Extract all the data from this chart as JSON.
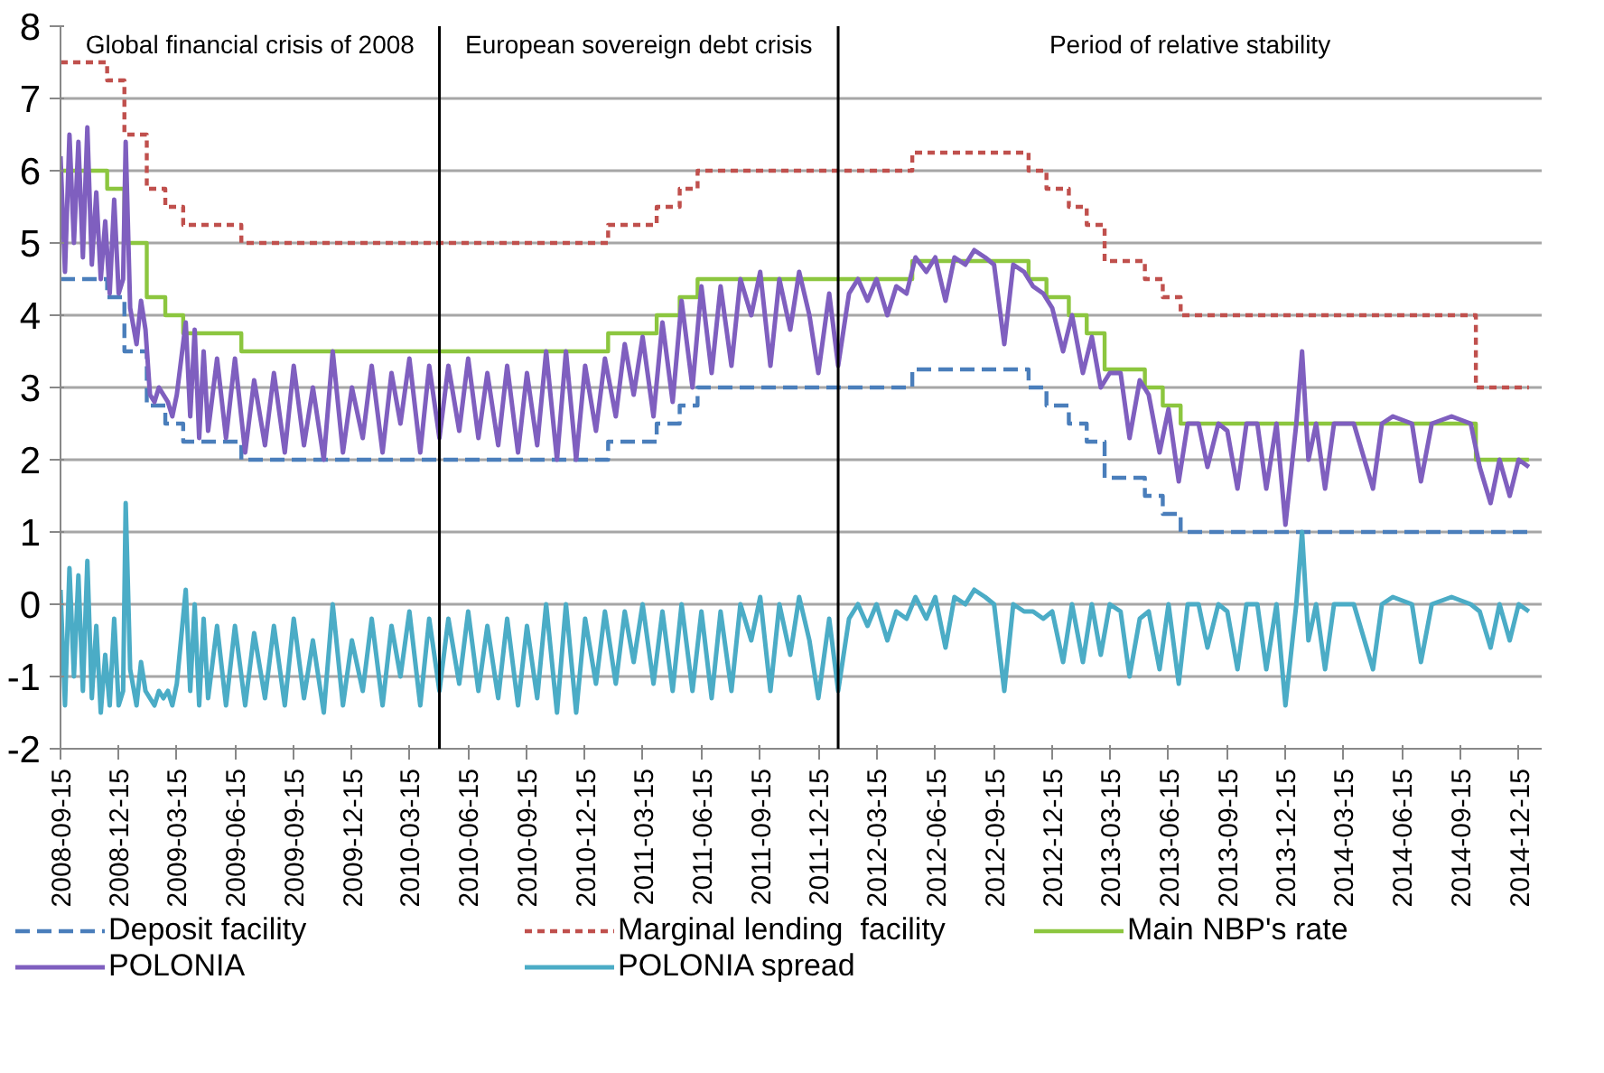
{
  "chart_data": {
    "type": "line",
    "xlim": [
      "2008-09-15",
      "2015-01-20"
    ],
    "xticks": [
      "2008-09-15",
      "2008-12-15",
      "2009-03-15",
      "2009-06-15",
      "2009-09-15",
      "2009-12-15",
      "2010-03-15",
      "2010-06-15",
      "2010-09-15",
      "2010-12-15",
      "2011-03-15",
      "2011-06-15",
      "2011-09-15",
      "2011-12-15",
      "2012-03-15",
      "2012-06-15",
      "2012-09-15",
      "2012-12-15",
      "2013-03-15",
      "2013-06-15",
      "2013-09-15",
      "2013-12-15",
      "2014-03-15",
      "2014-06-15",
      "2014-09-15",
      "2014-12-15"
    ],
    "ylim": [
      -2,
      8
    ],
    "yticks": [
      -2,
      -1,
      0,
      1,
      2,
      3,
      4,
      5,
      6,
      7,
      8
    ],
    "grid": "y",
    "legend": "bottom",
    "annotations": [
      "Global financial crisis of 2008",
      "European sovereign debt crisis",
      "Period of relative stability"
    ],
    "ref_lines": [
      {
        "axis": "x",
        "value": "2010-05-01",
        "label": null,
        "color": "#000000"
      },
      {
        "axis": "x",
        "value": "2012-01-15",
        "label": null,
        "color": "#000000"
      }
    ],
    "x": [
      "2008-09-15",
      "2008-09-22",
      "2008-09-29",
      "2008-10-06",
      "2008-10-13",
      "2008-10-20",
      "2008-10-27",
      "2008-11-03",
      "2008-11-10",
      "2008-11-17",
      "2008-11-24",
      "2008-12-01",
      "2008-12-08",
      "2008-12-15",
      "2008-12-22",
      "2008-12-26",
      "2009-01-02",
      "2009-01-12",
      "2009-01-19",
      "2009-01-26",
      "2009-02-02",
      "2009-02-09",
      "2009-02-16",
      "2009-02-23",
      "2009-03-02",
      "2009-03-09",
      "2009-03-16",
      "2009-03-30",
      "2009-04-06",
      "2009-04-13",
      "2009-04-20",
      "2009-04-27",
      "2009-05-04",
      "2009-05-18",
      "2009-06-01",
      "2009-06-15",
      "2009-07-01",
      "2009-07-15",
      "2009-08-01",
      "2009-08-15",
      "2009-09-01",
      "2009-09-15",
      "2009-10-01",
      "2009-10-15",
      "2009-11-01",
      "2009-11-15",
      "2009-12-01",
      "2009-12-15",
      "2010-01-01",
      "2010-01-15",
      "2010-02-01",
      "2010-02-15",
      "2010-03-01",
      "2010-03-15",
      "2010-04-01",
      "2010-04-15",
      "2010-05-01",
      "2010-05-15",
      "2010-06-01",
      "2010-06-15",
      "2010-07-01",
      "2010-07-15",
      "2010-08-01",
      "2010-08-15",
      "2010-09-01",
      "2010-09-15",
      "2010-10-01",
      "2010-10-15",
      "2010-11-01",
      "2010-11-15",
      "2010-12-01",
      "2010-12-15",
      "2011-01-01",
      "2011-01-15",
      "2011-02-01",
      "2011-02-15",
      "2011-03-01",
      "2011-03-15",
      "2011-04-01",
      "2011-04-15",
      "2011-05-01",
      "2011-05-15",
      "2011-06-01",
      "2011-06-15",
      "2011-07-01",
      "2011-07-15",
      "2011-08-01",
      "2011-08-15",
      "2011-09-01",
      "2011-09-15",
      "2011-10-01",
      "2011-10-15",
      "2011-11-01",
      "2011-11-15",
      "2011-12-01",
      "2011-12-15",
      "2012-01-01",
      "2012-01-15",
      "2012-02-01",
      "2012-02-15",
      "2012-03-01",
      "2012-03-15",
      "2012-04-01",
      "2012-04-15",
      "2012-05-01",
      "2012-05-15",
      "2012-06-01",
      "2012-06-15",
      "2012-07-01",
      "2012-07-15",
      "2012-08-01",
      "2012-08-15",
      "2012-09-01",
      "2012-09-15",
      "2012-10-01",
      "2012-10-15",
      "2012-11-01",
      "2012-11-15",
      "2012-12-01",
      "2012-12-15",
      "2013-01-01",
      "2013-01-15",
      "2013-02-01",
      "2013-02-15",
      "2013-03-01",
      "2013-03-15",
      "2013-04-01",
      "2013-04-15",
      "2013-05-01",
      "2013-05-15",
      "2013-06-01",
      "2013-06-15",
      "2013-07-01",
      "2013-07-15",
      "2013-08-01",
      "2013-08-15",
      "2013-09-01",
      "2013-09-15",
      "2013-10-01",
      "2013-10-15",
      "2013-11-01",
      "2013-11-15",
      "2013-12-01",
      "2013-12-15",
      "2014-01-01",
      "2014-01-10",
      "2014-01-20",
      "2014-02-01",
      "2014-02-15",
      "2014-03-01",
      "2014-04-01",
      "2014-05-01",
      "2014-05-15",
      "2014-06-01",
      "2014-07-01",
      "2014-07-15",
      "2014-08-01",
      "2014-09-01",
      "2014-10-01",
      "2014-10-15",
      "2014-11-01",
      "2014-11-15",
      "2014-12-01",
      "2014-12-15",
      "2014-12-31"
    ],
    "series": [
      {
        "name": "Deposit facility",
        "color": "#4a7ebb",
        "type": "step",
        "line_style": "dashed",
        "x": [
          "2008-09-15",
          "2008-11-27",
          "2008-12-24",
          "2009-01-28",
          "2009-02-26",
          "2009-03-26",
          "2009-06-25",
          "2011-01-20",
          "2011-04-06",
          "2011-05-12",
          "2011-06-09",
          "2012-05-10",
          "2012-11-08",
          "2012-12-06",
          "2013-01-10",
          "2013-02-07",
          "2013-03-07",
          "2013-05-09",
          "2013-06-06",
          "2013-07-04",
          "2014-10-09",
          "2014-12-31"
        ],
        "values": [
          4.5,
          4.25,
          3.5,
          2.75,
          2.5,
          2.25,
          2.0,
          2.25,
          2.5,
          2.75,
          3.0,
          3.25,
          3.0,
          2.75,
          2.5,
          2.25,
          1.75,
          1.5,
          1.25,
          1.0,
          1.0,
          1.0
        ]
      },
      {
        "name": "Marginal lending  facility",
        "color": "#c0504d",
        "type": "step",
        "line_style": "dotted",
        "x": [
          "2008-09-15",
          "2008-11-27",
          "2008-12-24",
          "2009-01-28",
          "2009-02-26",
          "2009-03-26",
          "2009-06-25",
          "2011-01-20",
          "2011-04-06",
          "2011-05-12",
          "2011-06-09",
          "2012-05-10",
          "2012-11-08",
          "2012-12-06",
          "2013-01-10",
          "2013-02-07",
          "2013-03-07",
          "2013-05-09",
          "2013-06-06",
          "2013-07-04",
          "2014-10-09",
          "2014-12-31"
        ],
        "values": [
          7.5,
          7.25,
          6.5,
          5.75,
          5.5,
          5.25,
          5.0,
          5.25,
          5.5,
          5.75,
          6.0,
          6.25,
          6.0,
          5.75,
          5.5,
          5.25,
          4.75,
          4.5,
          4.25,
          4.0,
          3.0,
          3.0
        ]
      },
      {
        "name": "Main NBP's rate",
        "color": "#8cc63f",
        "type": "step",
        "line_style": "solid",
        "x": [
          "2008-09-15",
          "2008-11-27",
          "2008-12-24",
          "2009-01-28",
          "2009-02-26",
          "2009-03-26",
          "2009-06-25",
          "2011-01-20",
          "2011-04-06",
          "2011-05-12",
          "2011-06-09",
          "2012-05-10",
          "2012-11-08",
          "2012-12-06",
          "2013-01-10",
          "2013-02-07",
          "2013-03-07",
          "2013-05-09",
          "2013-06-06",
          "2013-07-04",
          "2014-10-09",
          "2014-12-31"
        ],
        "values": [
          6.0,
          5.75,
          5.0,
          4.25,
          4.0,
          3.75,
          3.5,
          3.75,
          4.0,
          4.25,
          4.5,
          4.75,
          4.5,
          4.25,
          4.0,
          3.75,
          3.25,
          3.0,
          2.75,
          2.5,
          2.0,
          2.0
        ]
      },
      {
        "name": "POLONIA",
        "color": "#7f5fbf",
        "line_style": "solid",
        "values": [
          6.2,
          4.6,
          6.5,
          5.0,
          6.4,
          4.8,
          6.6,
          4.7,
          5.7,
          4.5,
          5.3,
          4.3,
          5.6,
          4.3,
          4.5,
          6.4,
          4.1,
          3.6,
          4.2,
          3.8,
          2.9,
          2.8,
          3.0,
          2.9,
          2.8,
          2.6,
          2.9,
          3.9,
          2.6,
          3.8,
          2.3,
          3.5,
          2.4,
          3.4,
          2.3,
          3.4,
          2.1,
          3.1,
          2.2,
          3.2,
          2.1,
          3.3,
          2.2,
          3.0,
          2.0,
          3.5,
          2.1,
          3.0,
          2.3,
          3.3,
          2.1,
          3.2,
          2.5,
          3.4,
          2.1,
          3.3,
          2.3,
          3.3,
          2.4,
          3.4,
          2.3,
          3.2,
          2.2,
          3.3,
          2.1,
          3.2,
          2.2,
          3.5,
          2.0,
          3.5,
          2.0,
          3.3,
          2.4,
          3.4,
          2.6,
          3.6,
          2.9,
          3.7,
          2.6,
          3.9,
          2.8,
          4.2,
          3.0,
          4.4,
          3.2,
          4.4,
          3.3,
          4.5,
          4.0,
          4.6,
          3.3,
          4.5,
          3.8,
          4.6,
          4.0,
          3.2,
          4.3,
          3.3,
          4.3,
          4.5,
          4.2,
          4.5,
          4.0,
          4.4,
          4.3,
          4.8,
          4.6,
          4.8,
          4.2,
          4.8,
          4.7,
          4.9,
          4.8,
          4.7,
          3.6,
          4.7,
          4.6,
          4.4,
          4.3,
          4.1,
          3.5,
          4.0,
          3.2,
          3.7,
          3.0,
          3.2,
          3.2,
          2.3,
          3.1,
          2.9,
          2.1,
          2.7,
          1.7,
          2.5,
          2.5,
          1.9,
          2.5,
          2.4,
          1.6,
          2.5,
          2.5,
          1.6,
          2.5,
          1.1,
          2.5,
          3.5,
          2.0,
          2.5,
          1.6,
          2.5,
          2.5,
          1.6,
          2.5,
          2.6,
          2.5,
          1.7,
          2.5,
          2.6,
          2.5,
          1.9,
          1.4,
          2.0,
          1.5,
          2.0,
          1.9
        ]
      },
      {
        "name": "POLONIA spread",
        "color": "#4bacc6",
        "line_style": "solid",
        "values": [
          0.2,
          -1.4,
          0.5,
          -1.0,
          0.4,
          -1.2,
          0.6,
          -1.3,
          -0.3,
          -1.5,
          -0.7,
          -1.4,
          -0.2,
          -1.4,
          -1.2,
          1.4,
          -0.9,
          -1.4,
          -0.8,
          -1.2,
          -1.3,
          -1.4,
          -1.2,
          -1.3,
          -1.2,
          -1.4,
          -1.1,
          0.2,
          -1.2,
          0.0,
          -1.4,
          -0.2,
          -1.3,
          -0.3,
          -1.4,
          -0.3,
          -1.4,
          -0.4,
          -1.3,
          -0.3,
          -1.4,
          -0.2,
          -1.3,
          -0.5,
          -1.5,
          0.0,
          -1.4,
          -0.5,
          -1.2,
          -0.2,
          -1.4,
          -0.3,
          -1.0,
          -0.1,
          -1.4,
          -0.2,
          -1.2,
          -0.2,
          -1.1,
          -0.1,
          -1.2,
          -0.3,
          -1.3,
          -0.2,
          -1.4,
          -0.3,
          -1.3,
          0.0,
          -1.5,
          0.0,
          -1.5,
          -0.2,
          -1.1,
          -0.1,
          -1.1,
          -0.1,
          -0.8,
          0.0,
          -1.1,
          -0.1,
          -1.2,
          0.0,
          -1.2,
          -0.1,
          -1.3,
          -0.1,
          -1.2,
          0.0,
          -0.5,
          0.1,
          -1.2,
          0.0,
          -0.7,
          0.1,
          -0.5,
          -1.3,
          -0.2,
          -1.2,
          -0.2,
          0.0,
          -0.3,
          0.0,
          -0.5,
          -0.1,
          -0.2,
          0.1,
          -0.2,
          0.1,
          -0.6,
          0.1,
          0.0,
          0.2,
          0.1,
          0.0,
          -1.2,
          0.0,
          -0.1,
          -0.1,
          -0.2,
          -0.1,
          -0.8,
          0.0,
          -0.8,
          0.0,
          -0.7,
          0.0,
          -0.1,
          -1.0,
          -0.2,
          -0.1,
          -0.9,
          0.0,
          -1.1,
          0.0,
          0.0,
          -0.6,
          0.0,
          -0.1,
          -0.9,
          0.0,
          0.0,
          -0.9,
          0.0,
          -1.4,
          0.0,
          1.0,
          -0.5,
          0.0,
          -0.9,
          0.0,
          0.0,
          -0.9,
          0.0,
          0.1,
          0.0,
          -0.8,
          0.0,
          0.1,
          0.0,
          -0.1,
          -0.6,
          0.0,
          -0.5,
          0.0,
          -0.1
        ]
      }
    ]
  }
}
